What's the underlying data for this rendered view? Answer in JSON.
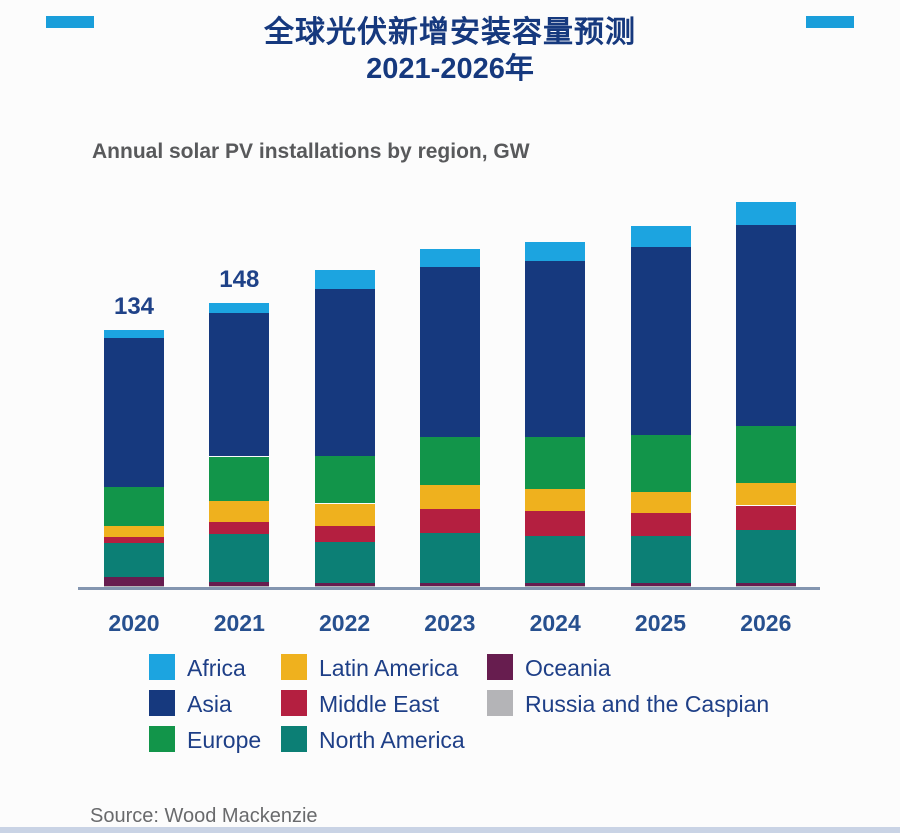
{
  "header": {
    "title_line1": "全球光伏新增安装容量预测",
    "title_line2": "2021-2026年",
    "accent_color": "#1a9eda"
  },
  "chart": {
    "subtitle": "Annual solar PV installations by region, GW"
  },
  "chart_data": {
    "type": "bar",
    "stacked": true,
    "title": "全球光伏新增安装容量预测 2021-2026年",
    "subtitle": "Annual solar PV installations by region, GW",
    "unit": "GW",
    "grid": false,
    "legend_position": "bottom",
    "categories": [
      "2020",
      "2021",
      "2022",
      "2023",
      "2024",
      "2025",
      "2026"
    ],
    "series": [
      {
        "name": "Africa",
        "color": "#1ca4e0",
        "values": [
          4,
          5,
          10,
          9,
          10,
          11,
          12
        ]
      },
      {
        "name": "Asia",
        "color": "#16397e",
        "values": [
          78,
          75,
          87,
          89,
          92,
          98,
          105
        ]
      },
      {
        "name": "Europe",
        "color": "#12954a",
        "values": [
          20,
          23,
          25,
          25,
          27,
          30,
          30
        ]
      },
      {
        "name": "Latin America",
        "color": "#efb11e",
        "values": [
          6,
          11,
          11.5,
          12.5,
          11.5,
          11,
          11.5
        ]
      },
      {
        "name": "Middle East",
        "color": "#b41f40",
        "values": [
          3,
          6.5,
          8.5,
          12.5,
          13,
          12,
          13
        ]
      },
      {
        "name": "North America",
        "color": "#0c7f75",
        "values": [
          18,
          25,
          21.5,
          26,
          24.5,
          24.5,
          27.5
        ]
      },
      {
        "name": "Oceania",
        "color": "#671d4f",
        "values": [
          4.5,
          2,
          1.5,
          1.5,
          1.5,
          1.5,
          1.5
        ]
      },
      {
        "name": "Russia and the Caspian",
        "color": "#b4b4b7",
        "values": [
          0.5,
          0.5,
          0.5,
          0.5,
          0.5,
          0.5,
          0.5
        ]
      }
    ],
    "stack_order_bottom_to_top": [
      "Russia and the Caspian",
      "Oceania",
      "North America",
      "Middle East",
      "Latin America",
      "Europe",
      "Asia",
      "Africa"
    ],
    "bar_labels": [
      "134",
      "148",
      "",
      "",
      "",
      "",
      ""
    ],
    "totals_labeled": {
      "2020": 134,
      "2021": 148
    }
  },
  "legend": {
    "columns": [
      [
        "Africa",
        "Asia",
        "Europe"
      ],
      [
        "Latin America",
        "Middle East",
        "North America"
      ],
      [
        "Oceania",
        "Russia and the Caspian"
      ]
    ]
  },
  "source": "Source: Wood Mackenzie"
}
